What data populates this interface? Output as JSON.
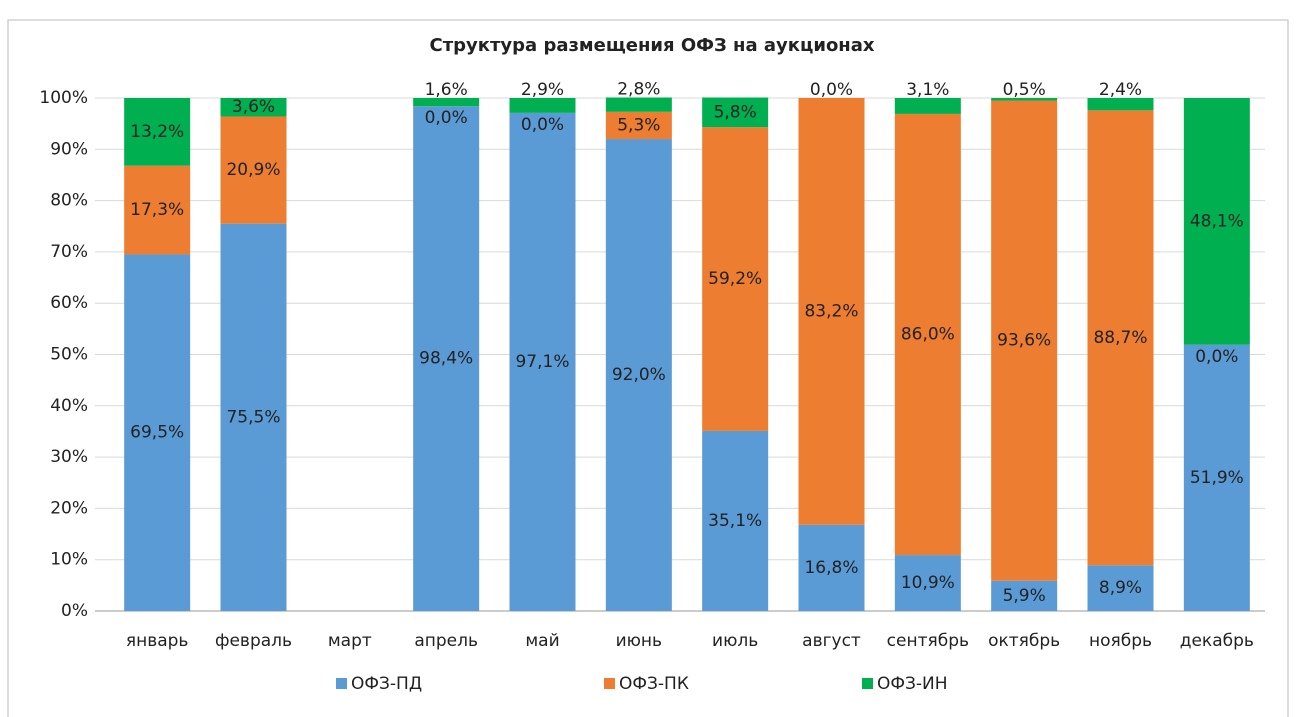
{
  "chart_data": {
    "type": "stacked_bar",
    "title": "Структура размещения  ОФЗ на аукционах",
    "categories": [
      "январь",
      "февраль",
      "март",
      "апрель",
      "май",
      "июнь",
      "июль",
      "август",
      "сентябрь",
      "октябрь",
      "ноябрь",
      "декабрь"
    ],
    "series": [
      {
        "name": "ОФЗ-ПД",
        "color": "#5b9bd5",
        "values": [
          69.5,
          75.5,
          null,
          98.4,
          97.1,
          92.0,
          35.1,
          16.8,
          10.9,
          5.9,
          8.9,
          51.9
        ],
        "value_labels": [
          "69,5%",
          "75,5%",
          null,
          "98,4%",
          "97,1%",
          "92,0%",
          "35,1%",
          "16,8%",
          "10,9%",
          "5,9%",
          "8,9%",
          "51,9%"
        ]
      },
      {
        "name": "ОФЗ-ПК",
        "color": "#ed7d31",
        "values": [
          17.3,
          20.9,
          null,
          0.0,
          0.0,
          5.3,
          59.2,
          83.2,
          86.0,
          93.6,
          88.7,
          0.0
        ],
        "value_labels": [
          "17,3%",
          "20,9%",
          null,
          "0,0%",
          "0,0%",
          "5,3%",
          "59,2%",
          "83,2%",
          "86,0%",
          "93,6%",
          "88,7%",
          "0,0%"
        ]
      },
      {
        "name": "ОФЗ-ИН",
        "color": "#00b050",
        "values": [
          13.2,
          3.6,
          null,
          1.6,
          2.9,
          2.8,
          5.8,
          0.0,
          3.1,
          0.5,
          2.4,
          48.1
        ],
        "value_labels": [
          "13,2%",
          "3,6%",
          null,
          "1,6%",
          "2,9%",
          "2,8%",
          "5,8%",
          "0,0%",
          "3,1%",
          "0,5%",
          "2,4%",
          "48,1%"
        ]
      }
    ],
    "ylim": [
      0,
      100
    ],
    "yticks": [
      {
        "value": 0,
        "label": "0%"
      },
      {
        "value": 10,
        "label": "10%"
      },
      {
        "value": 20,
        "label": "20%"
      },
      {
        "value": 30,
        "label": "30%"
      },
      {
        "value": 40,
        "label": "40%"
      },
      {
        "value": 50,
        "label": "50%"
      },
      {
        "value": 60,
        "label": "60%"
      },
      {
        "value": 70,
        "label": "70%"
      },
      {
        "value": 80,
        "label": "80%"
      },
      {
        "value": 90,
        "label": "90%"
      },
      {
        "value": 100,
        "label": "100%"
      }
    ],
    "grid": true,
    "legend": "bottom"
  }
}
